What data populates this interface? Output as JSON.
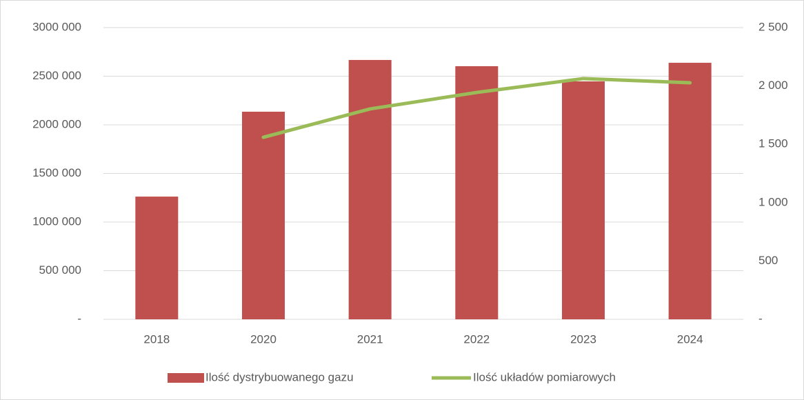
{
  "chart_data": {
    "type": "bar_line",
    "categories": [
      "2018",
      "2020",
      "2021",
      "2022",
      "2023",
      "2024"
    ],
    "series": [
      {
        "name": "Ilość dystrybuowanego gazu",
        "type": "bar",
        "color": "#c0504d",
        "axis": "y",
        "values": [
          1262000,
          2135000,
          2667000,
          2603000,
          2447000,
          2638000
        ]
      },
      {
        "name": "Ilość układów pomiarowych",
        "type": "line",
        "color": "#9bbb59",
        "axis": "y2",
        "values": [
          null,
          1560,
          1803,
          1944,
          2063,
          2027
        ]
      }
    ],
    "ylim": [
      0,
      3000000
    ],
    "yticks": [
      {
        "value": 0,
        "label": "-"
      },
      {
        "value": 500000,
        "label": "500 000"
      },
      {
        "value": 1000000,
        "label": "1000 000"
      },
      {
        "value": 1500000,
        "label": "1500 000"
      },
      {
        "value": 2000000,
        "label": "2000 000"
      },
      {
        "value": 2500000,
        "label": "2500 000"
      },
      {
        "value": 3000000,
        "label": "3000 000"
      }
    ],
    "y2lim": [
      0,
      2500
    ],
    "y2ticks": [
      {
        "value": 0,
        "label": "-"
      },
      500,
      {
        "value": 1000,
        "label": "1 000"
      },
      {
        "value": 1500,
        "label": "1 500"
      },
      {
        "value": 2000,
        "label": "2 000"
      },
      {
        "value": 2500,
        "label": "2 500"
      }
    ],
    "grid": true,
    "legend": "bottom"
  }
}
